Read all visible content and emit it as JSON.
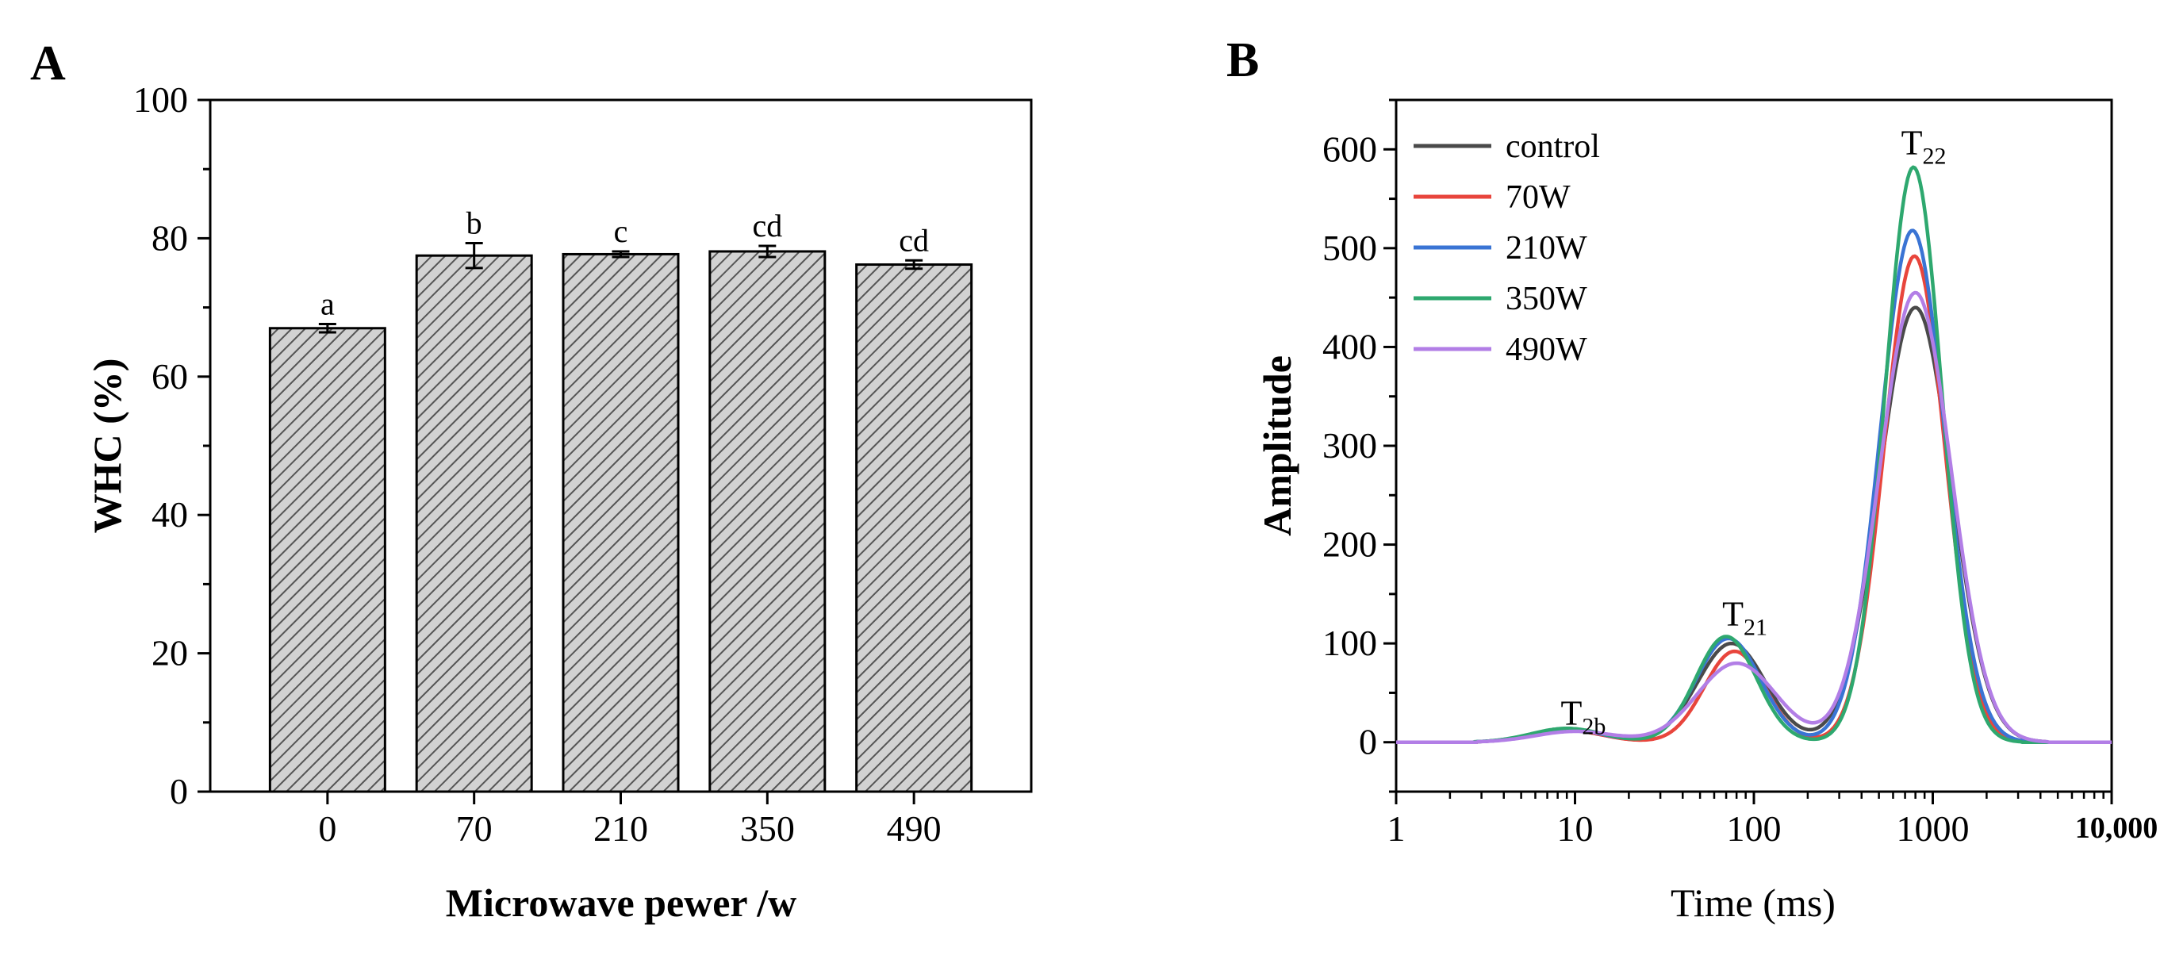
{
  "chart_data": [
    {
      "type": "bar",
      "panel_label": "A",
      "title": "",
      "xlabel": "Microwave pewer /w",
      "ylabel": "WHC (%)",
      "categories": [
        "0",
        "70",
        "210",
        "350",
        "490"
      ],
      "values": [
        67,
        77.5,
        77.7,
        78.1,
        76.2
      ],
      "errors": [
        0.6,
        1.8,
        0.4,
        0.8,
        0.6
      ],
      "significance_labels": [
        "a",
        "b",
        "c",
        "cd",
        "cd"
      ],
      "ylim": [
        0,
        100
      ],
      "yticks": [
        "0",
        "20",
        "40",
        "60",
        "80",
        "100"
      ],
      "bar_pattern": "diagonal-hatch",
      "grid": false
    },
    {
      "type": "line",
      "panel_label": "B",
      "title": "",
      "xlabel": "Time (ms)",
      "ylabel": "Amplitude",
      "xscale": "log",
      "xlim": [
        1,
        10000
      ],
      "ylim": [
        -50,
        650
      ],
      "xticks": [
        "1",
        "10",
        "100",
        "1000"
      ],
      "xtick_extra": "10,000",
      "yticks": [
        "0",
        "100",
        "200",
        "300",
        "400",
        "500",
        "600"
      ],
      "legend_position": "top-left",
      "annotations": [
        {
          "base": "T",
          "sub": "2b",
          "x": 10,
          "y": 18
        },
        {
          "base": "T",
          "sub": "21",
          "x": 80,
          "y": 118
        },
        {
          "base": "T",
          "sub": "22",
          "x": 800,
          "y": 595
        }
      ],
      "series": [
        {
          "name": "control",
          "color": "#4a4a4a",
          "peaks": [
            {
              "center": 9,
              "amp": 12,
              "width": 0.2
            },
            {
              "center": 75,
              "amp": 100,
              "width": 0.19
            },
            {
              "center": 800,
              "amp": 440,
              "width": 0.2
            }
          ],
          "valleys_to_zero": [
            0.3,
            0.5
          ]
        },
        {
          "name": "70W",
          "color": "#e8453c",
          "peaks": [
            {
              "center": 9,
              "amp": 12,
              "width": 0.2
            },
            {
              "center": 78,
              "amp": 92,
              "width": 0.17
            },
            {
              "center": 790,
              "amp": 492,
              "width": 0.17
            }
          ]
        },
        {
          "name": "210W",
          "color": "#3a74d4",
          "peaks": [
            {
              "center": 9,
              "amp": 13,
              "width": 0.2
            },
            {
              "center": 72,
              "amp": 105,
              "width": 0.18
            },
            {
              "center": 770,
              "amp": 518,
              "width": 0.18
            }
          ]
        },
        {
          "name": "350W",
          "color": "#2ea86f",
          "peaks": [
            {
              "center": 9,
              "amp": 14,
              "width": 0.2
            },
            {
              "center": 70,
              "amp": 107,
              "width": 0.17
            },
            {
              "center": 780,
              "amp": 582,
              "width": 0.16
            }
          ]
        },
        {
          "name": "490W",
          "color": "#b27ee6",
          "peaks": [
            {
              "center": 10,
              "amp": 11,
              "width": 0.22
            },
            {
              "center": 80,
              "amp": 80,
              "width": 0.22
            },
            {
              "center": 800,
              "amp": 455,
              "width": 0.2
            }
          ]
        }
      ]
    }
  ]
}
